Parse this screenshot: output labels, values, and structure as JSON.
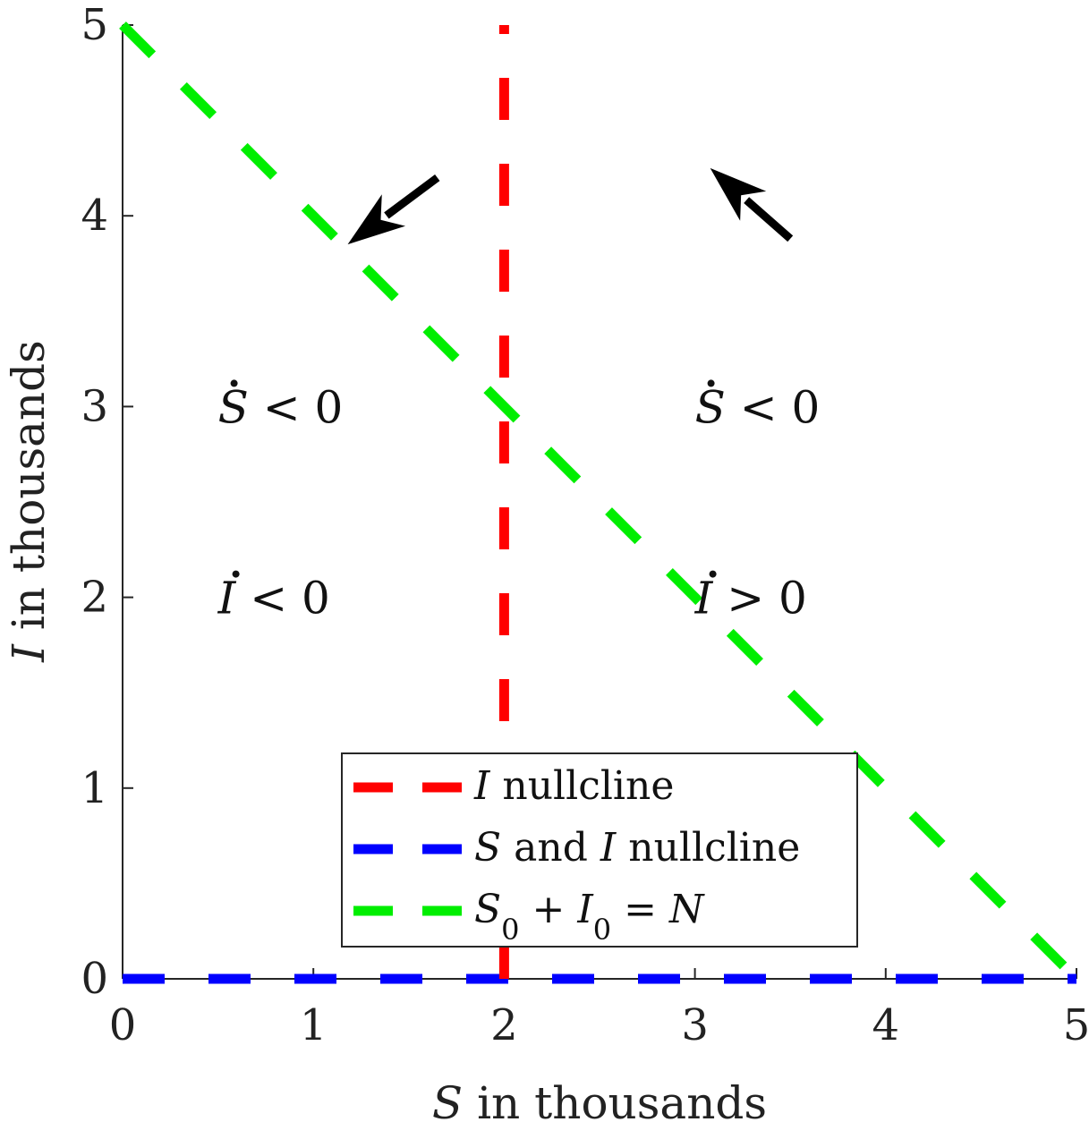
{
  "chart_data": {
    "type": "line",
    "title": "",
    "xlabel": {
      "var": "S",
      "rest": " in thousands"
    },
    "ylabel": {
      "var": "I",
      "rest": " in thousands"
    },
    "xlim": [
      0,
      5
    ],
    "ylim": [
      0,
      5
    ],
    "xticks": [
      0,
      1,
      2,
      3,
      4,
      5
    ],
    "yticks": [
      0,
      1,
      2,
      3,
      4,
      5
    ],
    "grid": false,
    "legend_position": "bottom-center",
    "series": [
      {
        "label_var": "I",
        "label_rest": " nullcline",
        "color": "#ff0000",
        "style": "dashed",
        "x": [
          2,
          2
        ],
        "y": [
          0,
          5
        ]
      },
      {
        "label_var": "S",
        "label_mid": " and ",
        "label_var2": "I",
        "label_rest": " nullcline",
        "color": "#0000ff",
        "style": "dashed",
        "x": [
          0,
          5
        ],
        "y": [
          0,
          0
        ]
      },
      {
        "label_formula": "S0 + I0 = N",
        "color": "#00ee00",
        "style": "dashed",
        "x": [
          0,
          5
        ],
        "y": [
          5,
          0
        ]
      }
    ],
    "annotations": [
      {
        "name": "region-left-sdot",
        "var": "S",
        "op": " < 0",
        "x": 0.5,
        "y": 3
      },
      {
        "name": "region-left-idot",
        "var": "I",
        "op": " < 0",
        "x": 0.5,
        "y": 2
      },
      {
        "name": "region-right-sdot",
        "var": "S",
        "op": " < 0",
        "x": 3.0,
        "y": 3
      },
      {
        "name": "region-right-idot",
        "var": "I",
        "op": " > 0",
        "x": 3.0,
        "y": 2
      }
    ],
    "arrows": [
      {
        "name": "direction-arrow-left",
        "from": [
          1.65,
          4.2
        ],
        "to": [
          1.18,
          3.85
        ]
      },
      {
        "name": "direction-arrow-right",
        "from": [
          3.5,
          3.88
        ],
        "to": [
          3.08,
          4.25
        ]
      }
    ]
  }
}
